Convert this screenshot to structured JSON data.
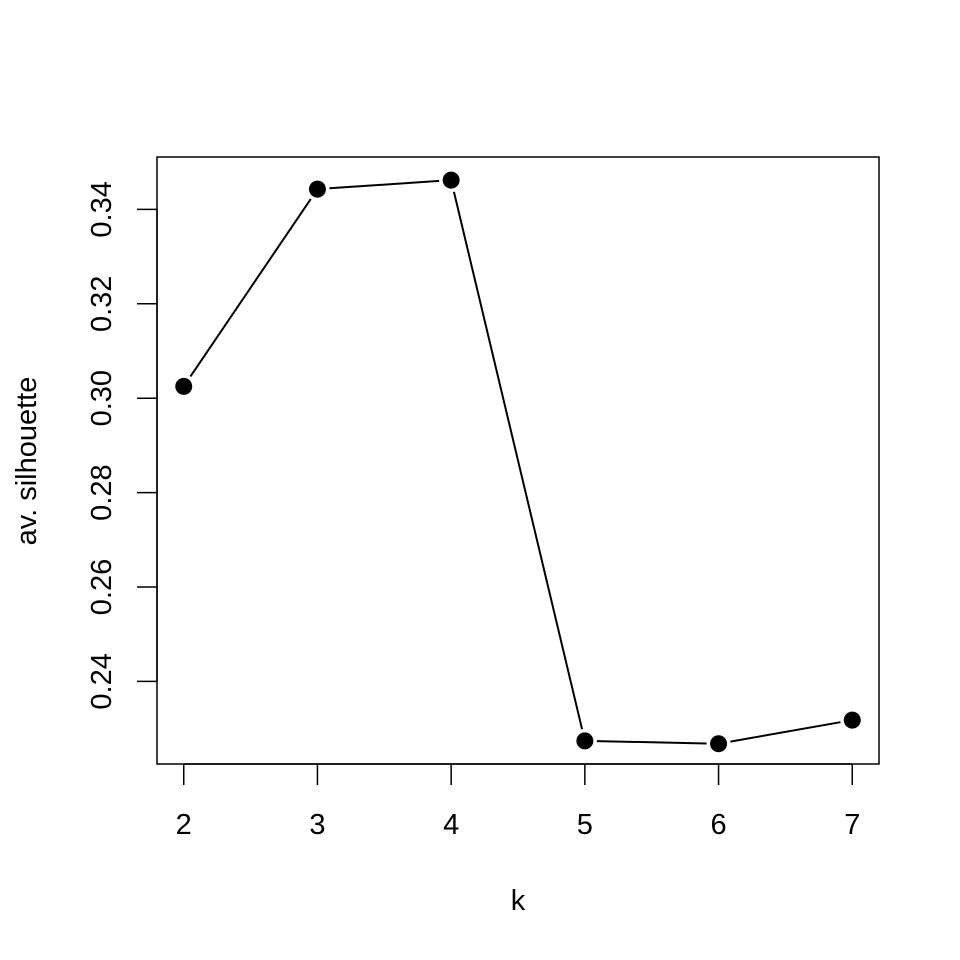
{
  "chart_data": {
    "type": "line",
    "title": "",
    "xlabel": "k",
    "ylabel": "av. silhouette",
    "x": [
      2,
      3,
      4,
      5,
      6,
      7
    ],
    "y": [
      0.3025,
      0.3443,
      0.3462,
      0.2274,
      0.2268,
      0.2318
    ],
    "xlim": [
      1.8,
      7.2
    ],
    "ylim": [
      0.2225,
      0.3511
    ],
    "xticks": [
      2,
      3,
      4,
      5,
      6,
      7
    ],
    "xtick_labels": [
      "2",
      "3",
      "4",
      "5",
      "6",
      "7"
    ],
    "yticks": [
      0.24,
      0.26,
      0.28,
      0.3,
      0.32,
      0.34
    ],
    "ytick_labels": [
      "0.24",
      "0.26",
      "0.28",
      "0.30",
      "0.32",
      "0.34"
    ],
    "markers": "filled-circle",
    "grid": false,
    "legend": "none",
    "line_color": "#000000",
    "marker_color": "#000000"
  }
}
